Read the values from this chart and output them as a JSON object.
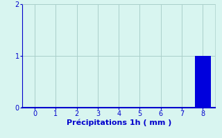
{
  "categories": [
    0,
    1,
    2,
    3,
    4,
    5,
    6,
    7,
    8
  ],
  "values": [
    0,
    0,
    0,
    0,
    0,
    0,
    0,
    0,
    1.0
  ],
  "bar_color": "#0000dd",
  "background_color": "#d8f5f0",
  "grid_color": "#aacfca",
  "axis_color": "#0000cc",
  "tick_color": "#0000cc",
  "xlabel": "Précipitations 1h ( mm )",
  "xlabel_color": "#0000cc",
  "xlabel_fontsize": 8,
  "tick_fontsize": 7,
  "xlim": [
    -0.6,
    8.6
  ],
  "ylim": [
    0,
    2
  ],
  "yticks": [
    0,
    1,
    2
  ],
  "xticks": [
    0,
    1,
    2,
    3,
    4,
    5,
    6,
    7,
    8
  ],
  "bar_width": 0.75
}
